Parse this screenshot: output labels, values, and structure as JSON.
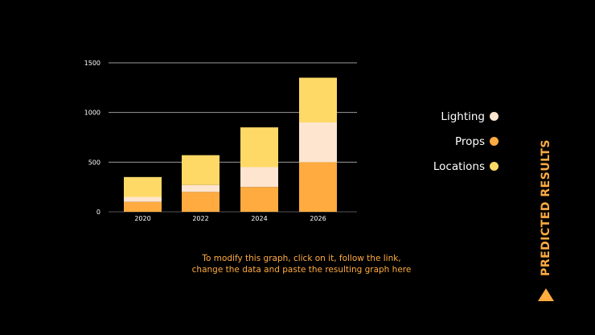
{
  "chart_data": {
    "type": "bar",
    "stacked": true,
    "categories": [
      "2020",
      "2022",
      "2024",
      "2026"
    ],
    "series": [
      {
        "name": "Props",
        "values": [
          100,
          200,
          250,
          500
        ],
        "color": "#ffab40"
      },
      {
        "name": "Lighting",
        "values": [
          50,
          70,
          200,
          400
        ],
        "color": "#fde5cf"
      },
      {
        "name": "Locations",
        "values": [
          200,
          300,
          400,
          450
        ],
        "color": "#ffd966"
      }
    ],
    "ylim": [
      0,
      1500
    ],
    "yticks": [
      0,
      500,
      1000,
      1500
    ],
    "grid": true,
    "legend_placement": "right"
  },
  "legend": {
    "items": [
      {
        "label": "Lighting",
        "color": "#fde5cf"
      },
      {
        "label": "Props",
        "color": "#ffab40"
      },
      {
        "label": "Locations",
        "color": "#ffd966"
      }
    ]
  },
  "note": {
    "line1": "To modify this graph, click on it, follow the link,",
    "line2": "change the data and paste the resulting graph here"
  },
  "side_title": "PREDICTED RESULTS",
  "icons": {
    "side_marker": "triangle-up-icon"
  }
}
